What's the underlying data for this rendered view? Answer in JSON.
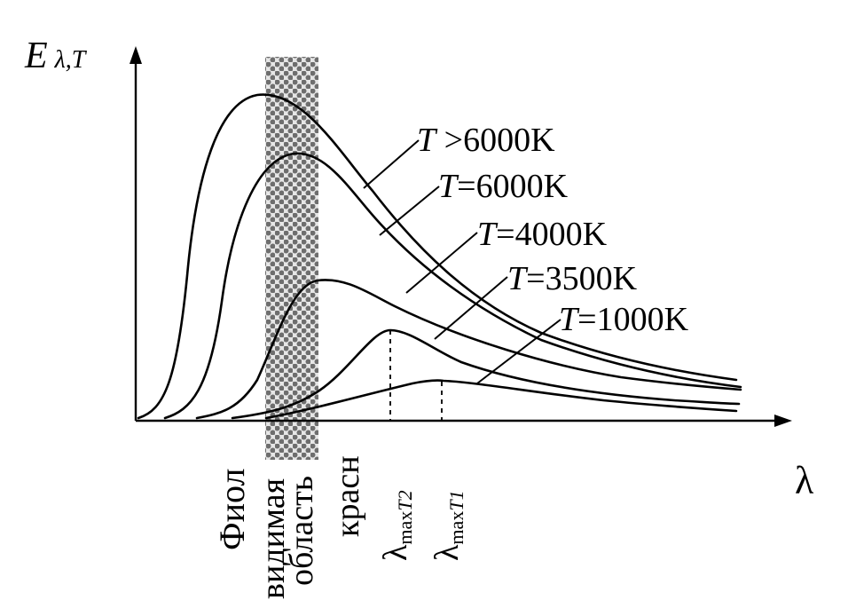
{
  "axes": {
    "y_label_main": "E",
    "y_label_sub": "λ,T",
    "x_label": "λ"
  },
  "curves": [
    {
      "T_label": "T",
      "rest_label": " >6000K",
      "temperature": ">6000"
    },
    {
      "T_label": "T",
      "rest_label": "=6000K",
      "temperature": "6000"
    },
    {
      "T_label": "T",
      "rest_label": "=4000K",
      "temperature": "4000"
    },
    {
      "T_label": "T",
      "rest_label": "=3500K",
      "temperature": "3500"
    },
    {
      "T_label": "T",
      "rest_label": "=1000K",
      "temperature": "1000"
    }
  ],
  "regions": {
    "violet": "Фиол",
    "visible_line1": "видимая",
    "visible_line2": "область",
    "red": "красн"
  },
  "markers": [
    {
      "lambda": "λ",
      "sub": "max",
      "T": "T2"
    },
    {
      "lambda": "λ",
      "sub": "max",
      "T": "T1"
    }
  ],
  "colors": {
    "ink": "#000000",
    "background": "#ffffff",
    "band_dark": "#6e6e6e",
    "band_light": "#e6e6e6"
  }
}
